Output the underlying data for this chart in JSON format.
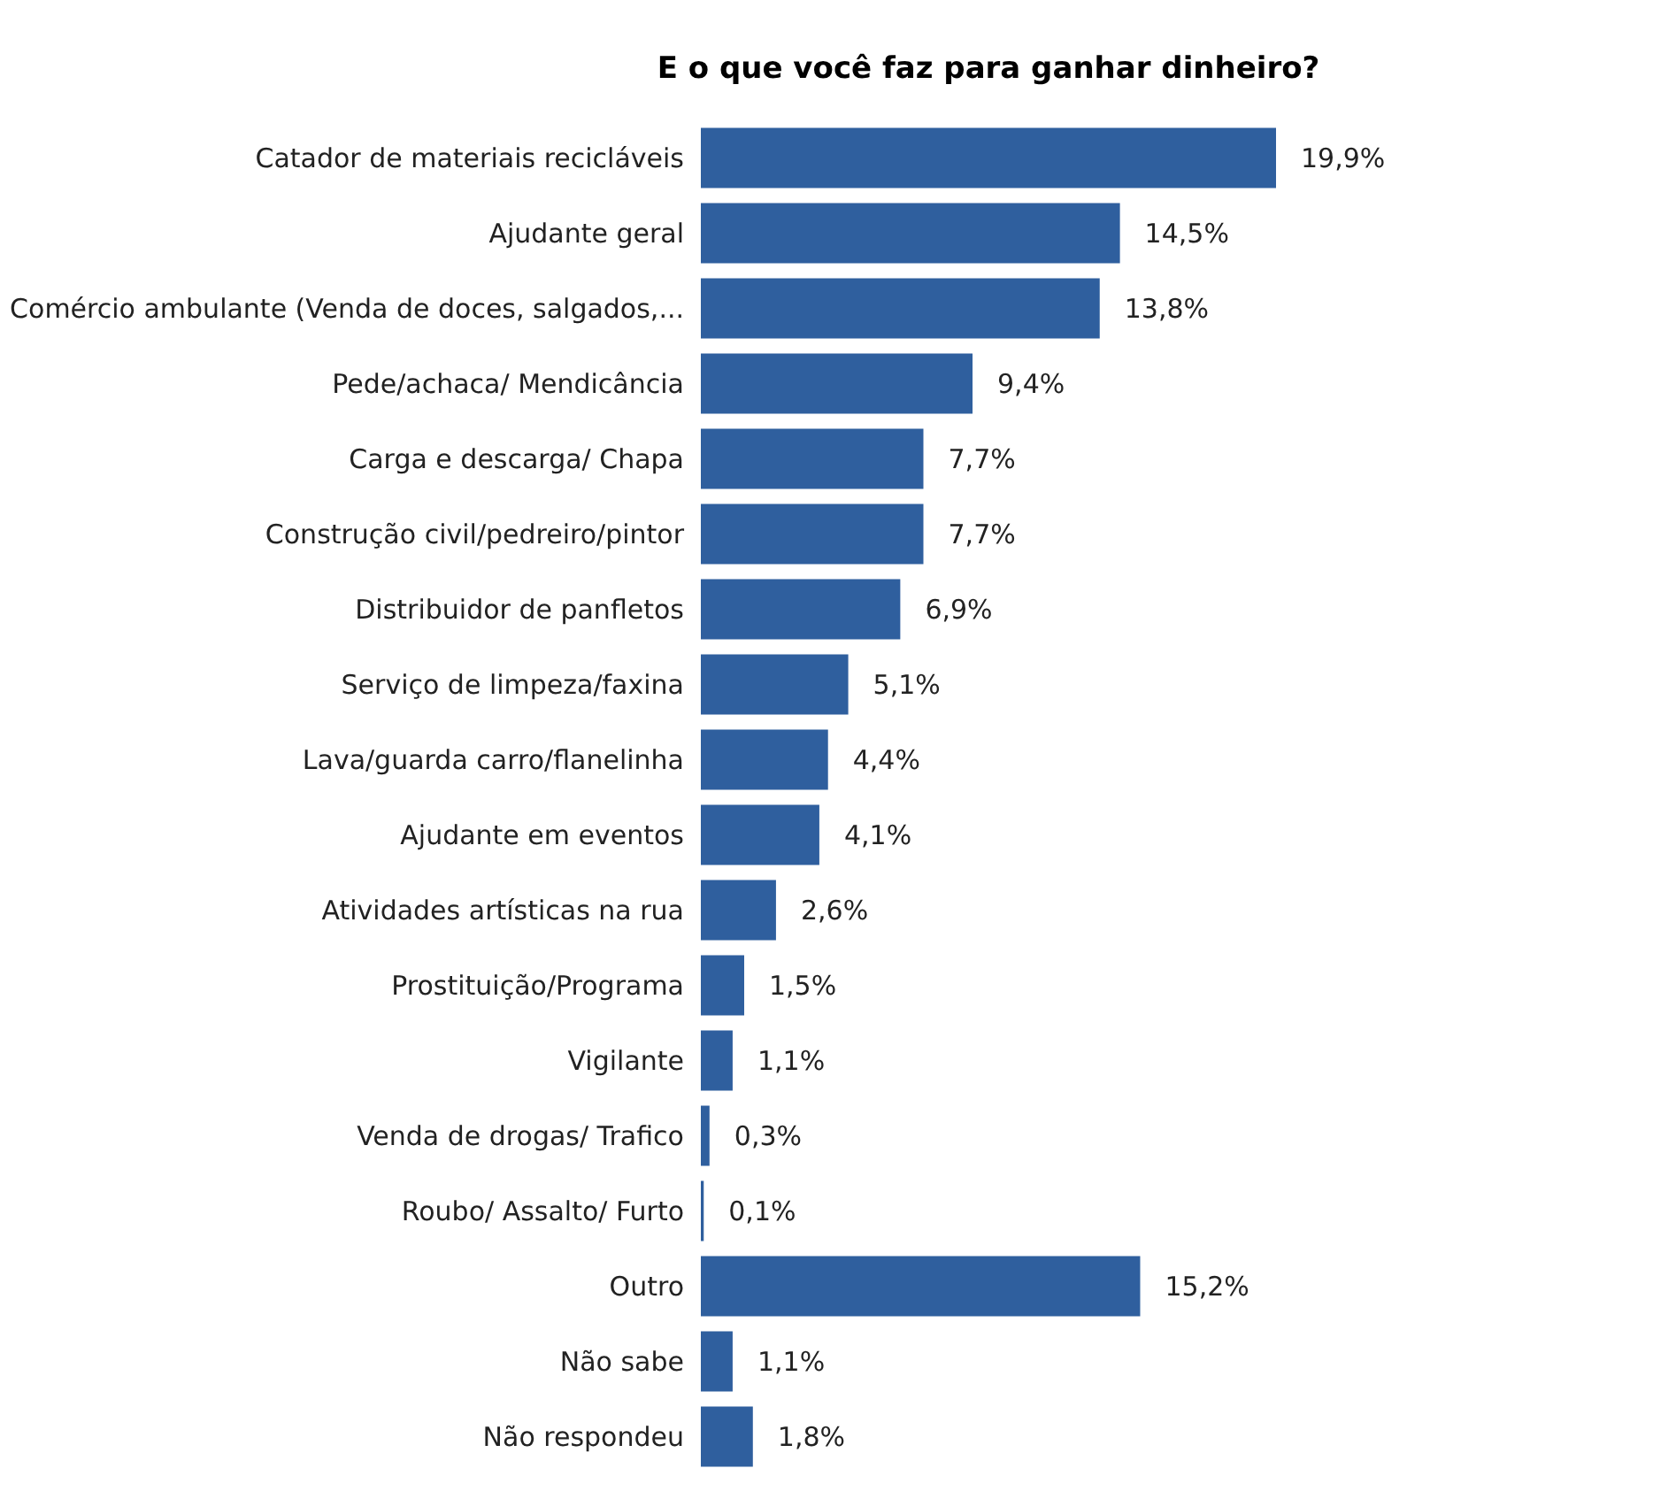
{
  "chart_data": {
    "type": "bar",
    "orientation": "horizontal",
    "title": "E o que você faz para ganhar dinheiro?",
    "categories": [
      "Catador de materiais recicláveis",
      "Ajudante geral",
      "Comércio ambulante (Venda de doces, salgados,...",
      "Pede/achaca/ Mendicância",
      "Carga e descarga/ Chapa",
      "Construção civil/pedreiro/pintor",
      "Distribuidor de panfletos",
      "Serviço de limpeza/faxina",
      "Lava/guarda carro/flanelinha",
      "Ajudante em eventos",
      "Atividades artísticas na rua",
      "Prostituição/Programa",
      "Vigilante",
      "Venda de drogas/ Trafico",
      "Roubo/ Assalto/ Furto",
      "Outro",
      "Não sabe",
      "Não respondeu"
    ],
    "values": [
      19.9,
      14.5,
      13.8,
      9.4,
      7.7,
      7.7,
      6.9,
      5.1,
      4.4,
      4.1,
      2.6,
      1.5,
      1.1,
      0.3,
      0.1,
      15.2,
      1.1,
      1.8
    ],
    "value_labels": [
      "19,9%",
      "14,5%",
      "13,8%",
      "9,4%",
      "7,7%",
      "7,7%",
      "6,9%",
      "5,1%",
      "4,4%",
      "4,1%",
      "2,6%",
      "1,5%",
      "1,1%",
      "0,3%",
      "0,1%",
      "15,2%",
      "1,1%",
      "1,8%"
    ],
    "color": "#2f5f9e"
  }
}
